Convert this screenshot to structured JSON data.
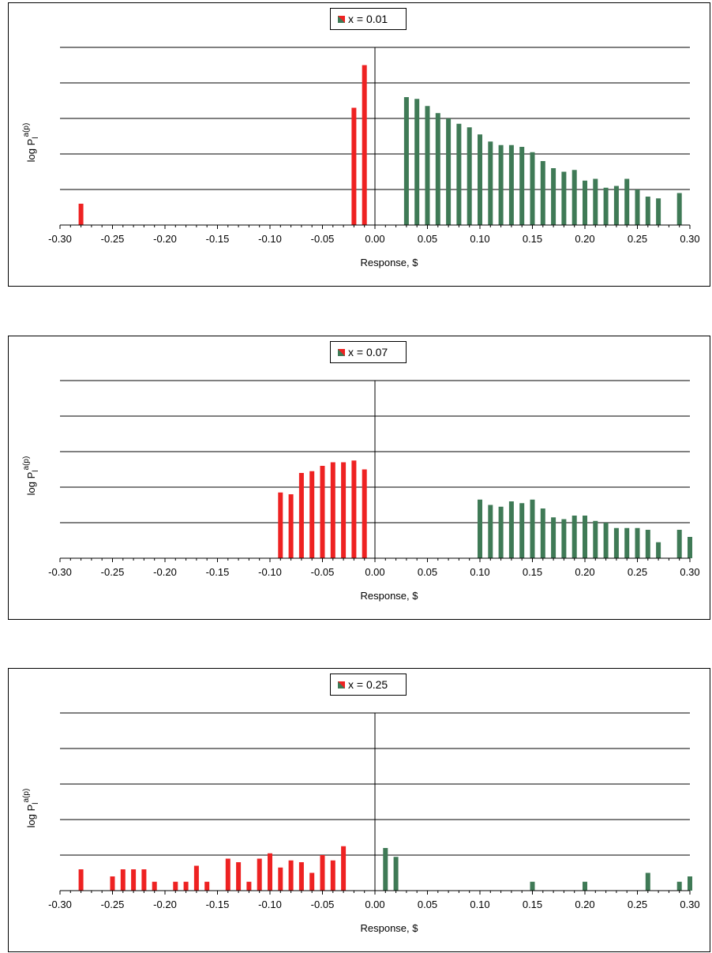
{
  "colors": {
    "negative": "#ee2222",
    "positive": "#3f7a56",
    "grid": "#000000"
  },
  "chart_data": [
    {
      "type": "bar",
      "legend": "x = 0.01",
      "xlabel": "Response, $",
      "ylabel": "log P",
      "ylabel_sub": "l",
      "ylabel_sup": "a(p)",
      "xlim": [
        -0.3,
        0.3
      ],
      "ylim": [
        0,
        5
      ],
      "grid": true,
      "xticks": [
        "-0.30",
        "-0.25",
        "-0.20",
        "-0.15",
        "-0.10",
        "-0.05",
        "0.00",
        "0.05",
        "0.10",
        "0.15",
        "0.20",
        "0.25",
        "0.30"
      ],
      "series": [
        {
          "x": [
            -0.28,
            -0.02,
            -0.01
          ],
          "values": [
            0.6,
            3.3,
            4.5
          ]
        },
        {
          "x": [
            0.03,
            0.04,
            0.05,
            0.06,
            0.07,
            0.08,
            0.09,
            0.1,
            0.11,
            0.12,
            0.13,
            0.14,
            0.15,
            0.16,
            0.17,
            0.18,
            0.19,
            0.2,
            0.21,
            0.22,
            0.23,
            0.24,
            0.25,
            0.26,
            0.27,
            0.29
          ],
          "values": [
            3.6,
            3.55,
            3.35,
            3.15,
            3.0,
            2.85,
            2.75,
            2.55,
            2.35,
            2.25,
            2.25,
            2.2,
            2.05,
            1.8,
            1.6,
            1.5,
            1.55,
            1.25,
            1.3,
            1.05,
            1.1,
            1.3,
            1.0,
            0.8,
            0.75,
            0.9
          ]
        }
      ]
    },
    {
      "type": "bar",
      "legend": "x = 0.07",
      "xlabel": "Response, $",
      "ylabel": "log P",
      "ylabel_sub": "l",
      "ylabel_sup": "a(p)",
      "xlim": [
        -0.3,
        0.3
      ],
      "ylim": [
        0,
        5
      ],
      "grid": true,
      "xticks": [
        "-0.30",
        "-0.25",
        "-0.20",
        "-0.15",
        "-0.10",
        "-0.05",
        "0.00",
        "0.05",
        "0.10",
        "0.15",
        "0.20",
        "0.25",
        "0.30"
      ],
      "series": [
        {
          "x": [
            -0.09,
            -0.08,
            -0.07,
            -0.06,
            -0.05,
            -0.04,
            -0.03,
            -0.02,
            -0.01
          ],
          "values": [
            1.85,
            1.8,
            2.4,
            2.45,
            2.6,
            2.7,
            2.7,
            2.75,
            2.5
          ]
        },
        {
          "x": [
            0.1,
            0.11,
            0.12,
            0.13,
            0.14,
            0.15,
            0.16,
            0.17,
            0.18,
            0.19,
            0.2,
            0.21,
            0.22,
            0.23,
            0.24,
            0.25,
            0.26,
            0.27,
            0.29,
            0.3
          ],
          "values": [
            1.65,
            1.5,
            1.45,
            1.6,
            1.55,
            1.65,
            1.4,
            1.15,
            1.1,
            1.2,
            1.2,
            1.05,
            1.0,
            0.85,
            0.85,
            0.85,
            0.8,
            0.45,
            0.8,
            0.6
          ]
        }
      ]
    },
    {
      "type": "bar",
      "legend": "x = 0.25",
      "xlabel": "Response, $",
      "ylabel": "log P",
      "ylabel_sub": "l",
      "ylabel_sup": "a(p)",
      "xlim": [
        -0.3,
        0.3
      ],
      "ylim": [
        0,
        5
      ],
      "grid": true,
      "xticks": [
        "-0.30",
        "-0.25",
        "-0.20",
        "-0.15",
        "-0.10",
        "-0.05",
        "0.00",
        "0.05",
        "0.10",
        "0.15",
        "0.20",
        "0.25",
        "0.30"
      ],
      "series": [
        {
          "x": [
            -0.28,
            -0.25,
            -0.24,
            -0.23,
            -0.22,
            -0.21,
            -0.19,
            -0.18,
            -0.17,
            -0.16,
            -0.14,
            -0.13,
            -0.12,
            -0.11,
            -0.1,
            -0.09,
            -0.08,
            -0.07,
            -0.06,
            -0.05,
            -0.04,
            -0.03
          ],
          "values": [
            0.6,
            0.4,
            0.6,
            0.6,
            0.6,
            0.25,
            0.25,
            0.25,
            0.7,
            0.25,
            0.9,
            0.8,
            0.25,
            0.9,
            1.05,
            0.65,
            0.85,
            0.8,
            0.5,
            1.0,
            0.85,
            1.25
          ]
        },
        {
          "x": [
            0.01,
            0.02,
            0.15,
            0.2,
            0.26,
            0.29,
            0.3
          ],
          "values": [
            1.2,
            0.95,
            0.25,
            0.25,
            0.5,
            0.25,
            0.4
          ]
        }
      ]
    }
  ]
}
